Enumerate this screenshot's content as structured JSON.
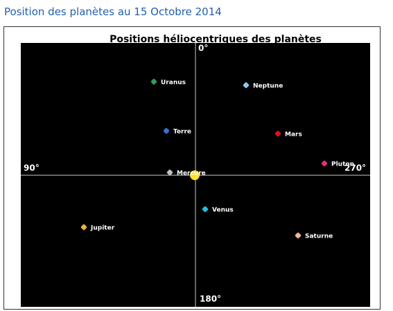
{
  "header": {
    "title": "Position des planètes au 15 Octobre 2014"
  },
  "diagram": {
    "title": "Positions héliocentriques des planètes",
    "directions": {
      "top": "0°",
      "left": "90°",
      "right": "270°",
      "bottom": "180°"
    },
    "planets": [
      {
        "label": "Uranus",
        "color": "#2e9e5a"
      },
      {
        "label": "Neptune",
        "color": "#8ec8f0"
      },
      {
        "label": "Terre",
        "color": "#3a6fd8"
      },
      {
        "label": "Mars",
        "color": "#e01010"
      },
      {
        "label": "Pluton",
        "color": "#e0307a"
      },
      {
        "label": "Mercure",
        "color": "#c0c0c0"
      },
      {
        "label": "Venus",
        "color": "#22c0e0"
      },
      {
        "label": "Jupiter",
        "color": "#f0b040"
      },
      {
        "label": "Saturne",
        "color": "#f0b890"
      }
    ]
  }
}
